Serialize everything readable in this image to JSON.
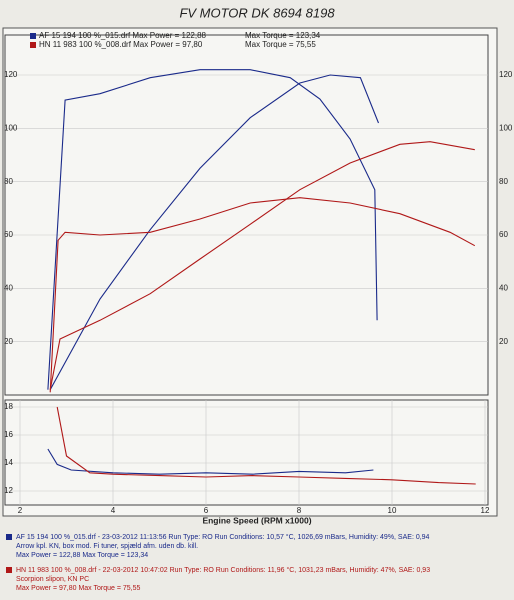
{
  "chart_data": [
    {
      "type": "line",
      "title": "FV MOTOR DK 8694 8198",
      "legend": [
        {
          "label": "AF 15 194 100 %_015.drf Max Power = 122,88",
          "extra": "Max Torque = 123,34",
          "color": "#1a2a8a"
        },
        {
          "label": "HN 11 983 100 %_008.drf Max Power = 97,80",
          "extra": "Max Torque = 75,55",
          "color": "#b01818"
        }
      ],
      "xlim": [
        2,
        12
      ],
      "ylim": [
        0,
        135
      ],
      "y2lim": [
        0,
        135
      ],
      "yticks": [
        20,
        40,
        60,
        80,
        100,
        120
      ],
      "y2ticks": [
        20,
        40,
        60,
        80,
        100,
        120
      ],
      "grid": true,
      "series": [
        {
          "color": "#1a2a8a",
          "x": [
            2.6,
            2.97,
            3.72,
            4.8,
            5.87,
            6.95,
            7.81,
            8.45,
            9.1,
            9.63,
            9.68
          ],
          "values": [
            2,
            110.6,
            113,
            119,
            122,
            122,
            119,
            111,
            96,
            77,
            28
          ]
        },
        {
          "color": "#1a2a8a",
          "x": [
            2.65,
            3.72,
            4.8,
            5.87,
            6.95,
            8.02,
            8.67,
            9.32,
            9.71
          ],
          "values": [
            2,
            36,
            62,
            85,
            104,
            117,
            120,
            119,
            102
          ]
        },
        {
          "color": "#b01818",
          "x": [
            2.65,
            2.82,
            2.97,
            3.72,
            4.8,
            5.87,
            6.95,
            8.02,
            9.1,
            10.17,
            11.25,
            11.78
          ],
          "values": [
            1,
            58,
            61,
            60,
            61,
            66,
            72,
            74,
            72,
            68,
            61,
            56
          ]
        },
        {
          "color": "#b01818",
          "x": [
            2.65,
            2.86,
            3.72,
            4.8,
            5.87,
            6.95,
            8.02,
            9.1,
            10.17,
            10.82,
            11.78
          ],
          "values": [
            2,
            21,
            28,
            38,
            51,
            64,
            77,
            87,
            94,
            95,
            92
          ]
        }
      ]
    },
    {
      "type": "line",
      "x_label": "Engine Speed (RPM x1000)",
      "xlim": [
        2,
        12
      ],
      "xticks": [
        2,
        4,
        6,
        8,
        10,
        12
      ],
      "ylim": [
        11,
        18.5
      ],
      "yticks": [
        12,
        14,
        16,
        18
      ],
      "grid": true,
      "series": [
        {
          "color": "#1a2a8a",
          "x": [
            2.6,
            2.8,
            3.1,
            4,
            5,
            6,
            7,
            8,
            9,
            9.6
          ],
          "values": [
            15,
            13.9,
            13.5,
            13.3,
            13.2,
            13.3,
            13.2,
            13.4,
            13.3,
            13.5
          ]
        },
        {
          "color": "#b01818",
          "x": [
            2.8,
            3,
            3.5,
            4,
            5,
            6,
            7,
            8,
            9,
            10,
            11,
            11.8
          ],
          "values": [
            18,
            14.5,
            13.3,
            13.2,
            13.1,
            13,
            13.1,
            13,
            12.9,
            12.8,
            12.6,
            12.5
          ]
        }
      ]
    }
  ],
  "footer": [
    {
      "color": "#1a2a8a",
      "lines": [
        "AF 15 194 100 %_015.drf - 23-03-2012 11:13:56  Run Type: RO  Run Conditions: 10,57 °C, 1026,69 mBars,  Humidity: 49%,  SAE: 0,94",
        "Arrow kpl. KN, box mod. Fi tuner, spjæld afm. uden db. kill.",
        "Max Power = 122,88  Max Torque = 123,34"
      ]
    },
    {
      "color": "#b01818",
      "lines": [
        "HN 11 983 100 %_008.drf - 22-03-2012 10:47:02  Run Type: RO  Run Conditions: 11,96 °C, 1031,23 mBars,  Humidity: 47%,  SAE: 0,93",
        "Scorpion slipon, KN PC",
        "Max Power = 97,80  Max Torque = 75,55"
      ]
    }
  ]
}
